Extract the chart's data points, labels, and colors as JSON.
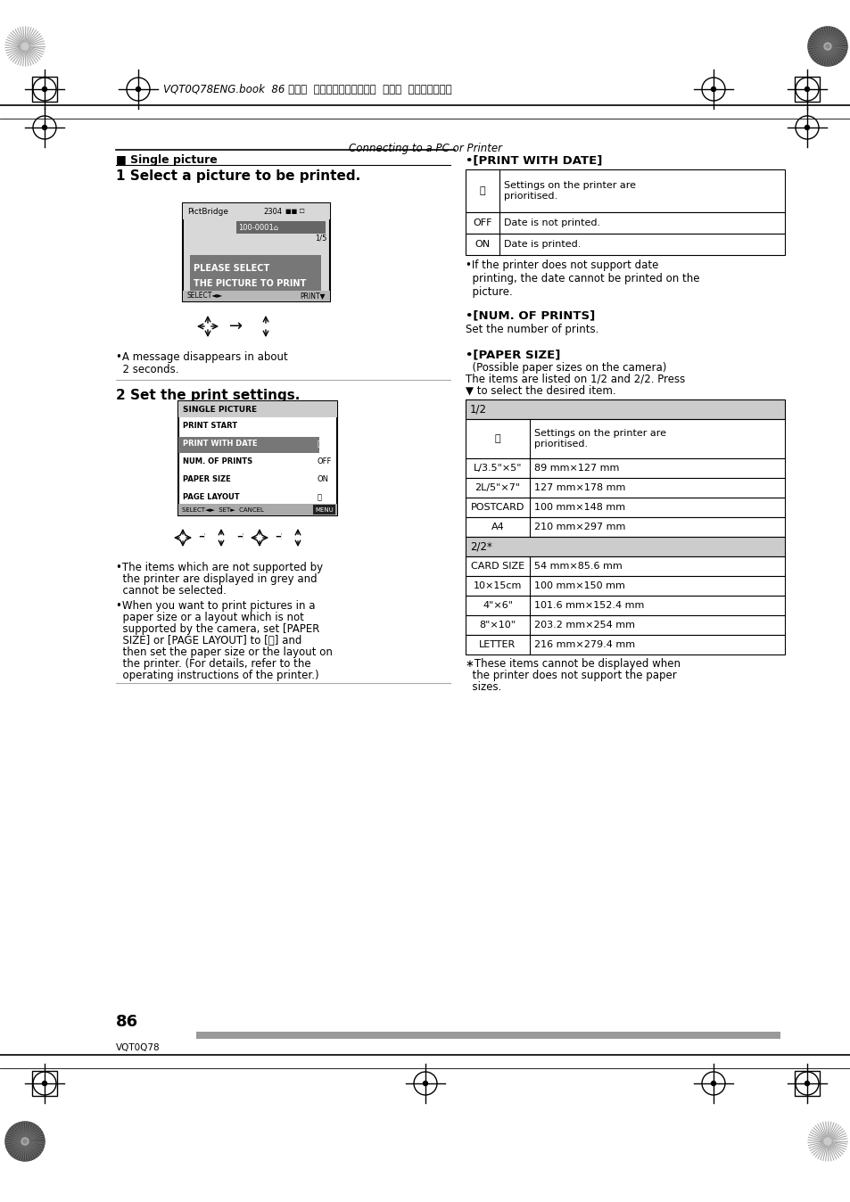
{
  "page_bg": "#ffffff",
  "header_text": "VQT0Q78ENG.book  86 ページ  ２００５年２月１４日  月曜日  午後１時１５分",
  "center_header": "Connecting to a PC or Printer",
  "single_picture_label": "■ Single picture",
  "print_with_date_heading": "•[PRINT WITH DATE]",
  "print_with_date_rows": [
    [
      "⎙",
      "Settings on the printer are\nprioritised."
    ],
    [
      "OFF",
      "Date is not printed."
    ],
    [
      "ON",
      "Date is printed."
    ]
  ],
  "print_with_date_note": "•If the printer does not support date\n  printing, the date cannot be printed on the\n  picture.",
  "num_of_prints_heading": "•[NUM. OF PRINTS]",
  "num_of_prints_text": "Set the number of prints.",
  "paper_size_heading": "•[PAPER SIZE]",
  "paper_size_sub1": "  (Possible paper sizes on the camera)",
  "paper_size_sub2": "The items are listed on 1/2 and 2/2. Press",
  "paper_size_sub3": "▼ to select the desired item.",
  "paper_size_table_header1": "1/2",
  "paper_size_table_rows1": [
    [
      "⎙",
      "Settings on the printer are\nprioritised."
    ],
    [
      "L/3.5\"×5\"",
      "89 mm×127 mm"
    ],
    [
      "2L/5\"×7\"",
      "127 mm×178 mm"
    ],
    [
      "POSTCARD",
      "100 mm×148 mm"
    ],
    [
      "A4",
      "210 mm×297 mm"
    ]
  ],
  "paper_size_table_header2": "2/2*",
  "paper_size_table_rows2": [
    [
      "CARD SIZE",
      "54 mm×85.6 mm"
    ],
    [
      "10×15cm",
      "100 mm×150 mm"
    ],
    [
      "4\"×6\"",
      "101.6 mm×152.4 mm"
    ],
    [
      "8\"×10\"",
      "203.2 mm×254 mm"
    ],
    [
      "LETTER",
      "216 mm×279.4 mm"
    ]
  ],
  "paper_size_footnote_line1": "∗These items cannot be displayed when",
  "paper_size_footnote_line2": "  the printer does not support the paper",
  "paper_size_footnote_line3": "  sizes.",
  "bullet1_line1": "•The items which are not supported by",
  "bullet1_line2": "  the printer are displayed in grey and",
  "bullet1_line3": "  cannot be selected.",
  "bullet2_line1": "•When you want to print pictures in a",
  "bullet2_line2": "  paper size or a layout which is not",
  "bullet2_line3": "  supported by the camera, set [PAPER",
  "bullet2_line4": "  SIZE] or [PAGE LAYOUT] to [⎙] and",
  "bullet2_line5": "  then set the paper size or the layout on",
  "bullet2_line6": "  the printer. (For details, refer to the",
  "bullet2_line7": "  operating instructions of the printer.)",
  "page_number": "86",
  "page_code": "VQT0Q78",
  "footer_bar_color": "#999999",
  "table_border_color": "#000000",
  "table_header_bg": "#cccccc"
}
